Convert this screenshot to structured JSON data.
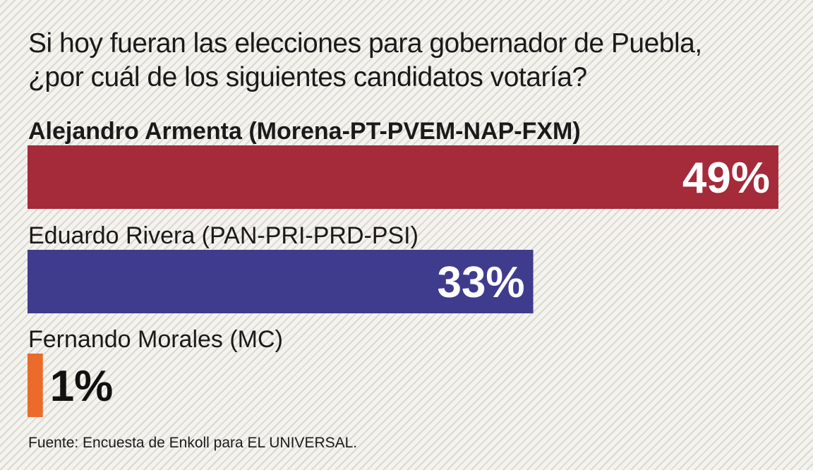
{
  "title_lines": [
    "Si hoy fueran las elecciones para gobernador de Puebla,",
    "¿por cuál de los siguientes candidatos votaría?"
  ],
  "source": "Fuente: Encuesta de Enkoll para EL UNIVERSAL.",
  "colors": {
    "armenta": "#a52a3a",
    "rivera": "#3f3c8e",
    "morales": "#ea6b2a"
  },
  "chart_data": {
    "type": "bar",
    "orientation": "horizontal",
    "categories": [
      "Alejandro Armenta (Morena-PT-PVEM-NAP-FXM)",
      "Eduardo Rivera (PAN-PRI-PRD-PSI)",
      "Fernando Morales (MC)"
    ],
    "values": [
      49,
      33,
      1
    ],
    "value_labels": [
      "49%",
      "33%",
      "1%"
    ],
    "bold_categories": [
      true,
      false,
      false
    ],
    "unit": "%"
  }
}
